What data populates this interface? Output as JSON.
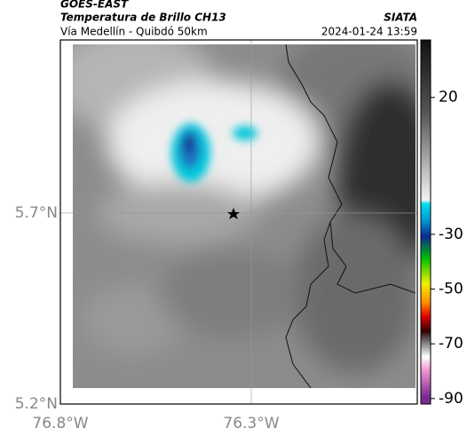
{
  "header": {
    "source": "GOES-EAST",
    "product": "Temperatura de Brillo CH13",
    "route": "Vía Medellín - Quibdó 50km",
    "agency": "SIATA",
    "timestamp": "2024-01-24 13:59"
  },
  "map": {
    "xlim": [
      -76.8,
      -75.865
    ],
    "ylim": [
      5.2,
      6.153
    ],
    "xticks": [
      {
        "value": -76.8,
        "label": "76.8°W"
      },
      {
        "value": -76.3,
        "label": "76.3°W"
      }
    ],
    "yticks": [
      {
        "value": 5.2,
        "label": "5.2°N"
      },
      {
        "value": 5.7,
        "label": "5.7°N"
      }
    ],
    "grid": true
  },
  "colorbar": {
    "lim": [
      -92,
      41
    ],
    "ticks": [
      20,
      -30,
      -50,
      -70,
      -90
    ]
  }
}
